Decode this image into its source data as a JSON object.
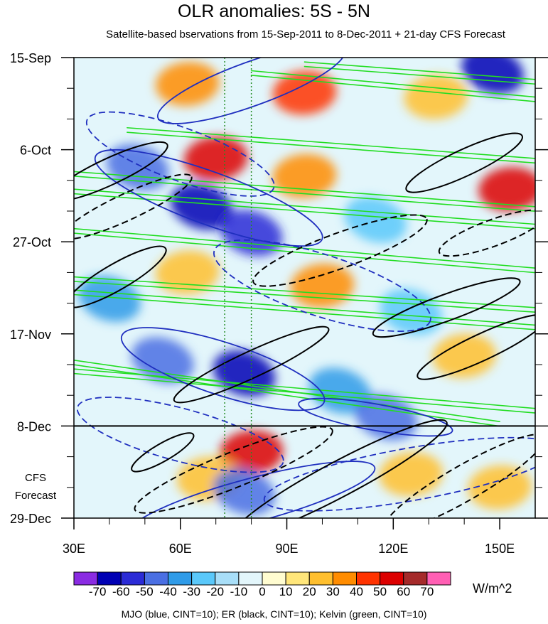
{
  "title": "OLR anomalies: 5S - 5N",
  "subtitle": "Satellite-based bservations from 15-Sep-2011 to 8-Dec-2011 + 21-day CFS Forecast",
  "forecast_label_line1": "CFS",
  "forecast_label_line2": "Forecast",
  "units": "W/m^2",
  "footnote": "MJO (blue, CINT=10); ER (black, CINT=10); Kelvin (green, CINT=10)",
  "colors": {
    "mjo": "#1f2fbf",
    "er": "#000000",
    "kelvin": "#22dd22",
    "ref_lines": "#228b22"
  },
  "chart_data": {
    "type": "heatmap",
    "title": "OLR anomalies: 5S - 5N",
    "x_axis": {
      "range": [
        30,
        160
      ],
      "ticks": [
        {
          "value": 30,
          "label": "30E"
        },
        {
          "value": 60,
          "label": "60E"
        },
        {
          "value": 90,
          "label": "90E"
        },
        {
          "value": 120,
          "label": "120E"
        },
        {
          "value": 150,
          "label": "150E"
        }
      ]
    },
    "y_axis": {
      "range": [
        "15-Sep",
        "29-Dec"
      ],
      "ticks": [
        {
          "day": 0,
          "label": "15-Sep"
        },
        {
          "day": 21,
          "label": "6-Oct"
        },
        {
          "day": 42,
          "label": "27-Oct"
        },
        {
          "day": 63,
          "label": "17-Nov"
        },
        {
          "day": 84,
          "label": "8-Dec"
        },
        {
          "day": 105,
          "label": "29-Dec"
        }
      ],
      "observation_end_day": 84
    },
    "reference_longitudes": [
      72.5,
      80
    ],
    "colorbar": {
      "units": "W/m^2",
      "levels": [
        {
          "label": "-70",
          "color": "#8a2be2"
        },
        {
          "label": "-60",
          "color": "#0000b4"
        },
        {
          "label": "-50",
          "color": "#2b2bd6"
        },
        {
          "label": "-40",
          "color": "#4a6fe3"
        },
        {
          "label": "-30",
          "color": "#2f9be8"
        },
        {
          "label": "-20",
          "color": "#5ac8fa"
        },
        {
          "label": "-10",
          "color": "#a8def8"
        },
        {
          "label": "0",
          "color": "#e3f6fb"
        },
        {
          "label": "10",
          "color": "#fffcd0"
        },
        {
          "label": "20",
          "color": "#ffe67a"
        },
        {
          "label": "30",
          "color": "#ffbf2e"
        },
        {
          "label": "40",
          "color": "#ff8c00"
        },
        {
          "label": "50",
          "color": "#ff3300"
        },
        {
          "label": "60",
          "color": "#dc0000"
        },
        {
          "label": "70",
          "color": "#a52a2a"
        },
        {
          "label": "",
          "color": "#ff5fb4"
        }
      ],
      "low_color": "#8a2be2"
    },
    "anomaly_blobs": [
      {
        "lon": 62,
        "day": 6,
        "value": 40
      },
      {
        "lon": 95,
        "day": 8,
        "value": 50
      },
      {
        "lon": 132,
        "day": 9,
        "value": 30
      },
      {
        "lon": 148,
        "day": 3,
        "value": -60
      },
      {
        "lon": 70,
        "day": 23,
        "value": 60
      },
      {
        "lon": 95,
        "day": 27,
        "value": 40
      },
      {
        "lon": 153,
        "day": 30,
        "value": 60
      },
      {
        "lon": 48,
        "day": 25,
        "value": -40
      },
      {
        "lon": 66,
        "day": 34,
        "value": -60
      },
      {
        "lon": 80,
        "day": 40,
        "value": -50
      },
      {
        "lon": 115,
        "day": 37,
        "value": -20
      },
      {
        "lon": 62,
        "day": 49,
        "value": 30
      },
      {
        "lon": 100,
        "day": 52,
        "value": 40
      },
      {
        "lon": 40,
        "day": 55,
        "value": -30
      },
      {
        "lon": 125,
        "day": 58,
        "value": -20
      },
      {
        "lon": 78,
        "day": 72,
        "value": -60
      },
      {
        "lon": 55,
        "day": 69,
        "value": -40
      },
      {
        "lon": 105,
        "day": 76,
        "value": -30
      },
      {
        "lon": 140,
        "day": 68,
        "value": 30
      },
      {
        "lon": 118,
        "day": 82,
        "value": -40
      },
      {
        "lon": 80,
        "day": 90,
        "value": 60
      },
      {
        "lon": 68,
        "day": 96,
        "value": 30
      },
      {
        "lon": 78,
        "day": 99,
        "value": -40
      },
      {
        "lon": 125,
        "day": 95,
        "value": 30
      },
      {
        "lon": 150,
        "day": 98,
        "value": 30
      }
    ],
    "mjo_contours": [
      {
        "lon": 80,
        "day": 6,
        "rx": 28,
        "ry": 5,
        "angle": -20,
        "sign": "positive"
      },
      {
        "lon": 68,
        "day": 32,
        "rx": 34,
        "ry": 6,
        "angle": 20,
        "sign": "positive"
      },
      {
        "lon": 72,
        "day": 71,
        "rx": 30,
        "ry": 6,
        "angle": 18,
        "sign": "positive"
      },
      {
        "lon": 115,
        "day": 82,
        "rx": 22,
        "ry": 3,
        "angle": 10,
        "sign": "positive"
      },
      {
        "lon": 80,
        "day": 101,
        "rx": 36,
        "ry": 5,
        "angle": -15,
        "sign": "positive"
      },
      {
        "lon": 60,
        "day": 22,
        "rx": 28,
        "ry": 6,
        "angle": 20,
        "sign": "negative"
      },
      {
        "lon": 100,
        "day": 52,
        "rx": 32,
        "ry": 7,
        "angle": 18,
        "sign": "negative"
      },
      {
        "lon": 60,
        "day": 86,
        "rx": 30,
        "ry": 6,
        "angle": 15,
        "sign": "negative"
      },
      {
        "lon": 125,
        "day": 95,
        "rx": 42,
        "ry": 6,
        "angle": -10,
        "sign": "negative"
      }
    ],
    "er_contours": [
      {
        "lon": 40,
        "day": 26,
        "rx": 18,
        "ry": 3,
        "angle": -25,
        "sign": "positive"
      },
      {
        "lon": 42,
        "day": 50,
        "rx": 16,
        "ry": 3,
        "angle": -30,
        "sign": "positive"
      },
      {
        "lon": 135,
        "day": 57,
        "rx": 22,
        "ry": 3,
        "angle": -20,
        "sign": "positive"
      },
      {
        "lon": 80,
        "day": 70,
        "rx": 24,
        "ry": 3,
        "angle": -25,
        "sign": "positive"
      },
      {
        "lon": 145,
        "day": 66,
        "rx": 20,
        "ry": 3,
        "angle": -25,
        "sign": "positive"
      },
      {
        "lon": 55,
        "day": 90,
        "rx": 10,
        "ry": 2,
        "angle": -30,
        "sign": "positive"
      },
      {
        "lon": 105,
        "day": 96,
        "rx": 34,
        "ry": 4,
        "angle": -28,
        "sign": "positive"
      },
      {
        "lon": 140,
        "day": 24,
        "rx": 18,
        "ry": 3,
        "angle": -25,
        "sign": "positive"
      },
      {
        "lon": 45,
        "day": 34,
        "rx": 20,
        "ry": 3,
        "angle": -25,
        "sign": "negative"
      },
      {
        "lon": 105,
        "day": 44,
        "rx": 26,
        "ry": 4,
        "angle": -20,
        "sign": "negative"
      },
      {
        "lon": 148,
        "day": 40,
        "rx": 16,
        "ry": 3,
        "angle": -20,
        "sign": "negative"
      },
      {
        "lon": 75,
        "day": 94,
        "rx": 30,
        "ry": 4,
        "angle": -22,
        "sign": "negative"
      },
      {
        "lon": 140,
        "day": 97,
        "rx": 26,
        "ry": 4,
        "angle": -30,
        "sign": "negative"
      }
    ],
    "kelvin_bands": [
      {
        "lon_start": 95,
        "day_start": 1,
        "lon_end": 160,
        "day_end": 5
      },
      {
        "lon_start": 80,
        "day_start": 3,
        "lon_end": 160,
        "day_end": 9
      },
      {
        "lon_start": 45,
        "day_start": 16,
        "lon_end": 160,
        "day_end": 23
      },
      {
        "lon_start": 30,
        "day_start": 26,
        "lon_end": 160,
        "day_end": 34
      },
      {
        "lon_start": 30,
        "day_start": 30,
        "lon_end": 160,
        "day_end": 38
      },
      {
        "lon_start": 30,
        "day_start": 39,
        "lon_end": 160,
        "day_end": 48
      },
      {
        "lon_start": 30,
        "day_start": 50,
        "lon_end": 160,
        "day_end": 57
      },
      {
        "lon_start": 30,
        "day_start": 53,
        "lon_end": 160,
        "day_end": 61
      },
      {
        "lon_start": 30,
        "day_start": 69,
        "lon_end": 150,
        "day_end": 83
      },
      {
        "lon_start": 30,
        "day_start": 71,
        "lon_end": 160,
        "day_end": 80
      }
    ]
  }
}
